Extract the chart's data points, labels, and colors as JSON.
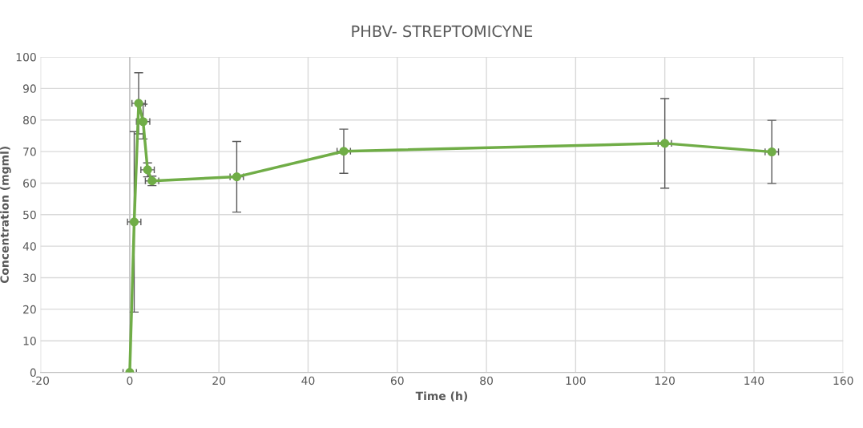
{
  "chart_data": {
    "type": "line",
    "title": "PHBV- STREPTOMICYNE",
    "xlabel": "Time (h)",
    "ylabel": "Concentration (mgml)",
    "x": [
      0,
      1,
      2,
      3,
      4,
      5,
      24,
      48,
      120,
      144
    ],
    "series": [
      {
        "color": "#70ad47",
        "values": [
          0,
          47.7,
          85.3,
          79.5,
          64.2,
          60.7,
          62,
          70.1,
          72.6,
          69.9
        ],
        "errors": [
          null,
          28.6,
          9.7,
          5.5,
          2.2,
          1.5,
          11.2,
          7,
          14.2,
          10
        ],
        "xerrors": [
          1.5,
          1.5,
          1.5,
          1.5,
          1.5,
          1.5,
          1.5,
          1.5,
          1.5,
          1.5
        ]
      }
    ],
    "xlim": [
      -20,
      160
    ],
    "xticks": [
      -20,
      0,
      20,
      40,
      60,
      80,
      100,
      120,
      140,
      160
    ],
    "ylim": [
      0,
      100
    ],
    "yticks": [
      0,
      10,
      20,
      30,
      40,
      50,
      60,
      70,
      80,
      90,
      100
    ],
    "grid": true,
    "legend": false,
    "marker": "circle",
    "line_style": "solid"
  }
}
